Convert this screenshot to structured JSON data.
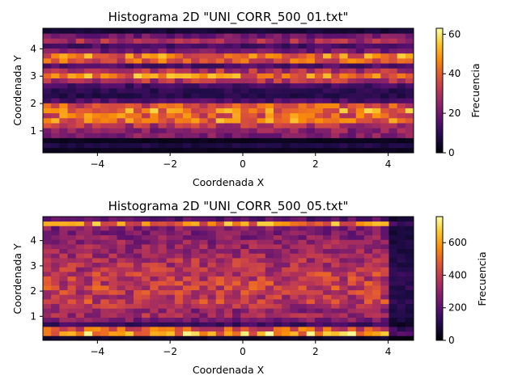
{
  "chart_data": [
    {
      "type": "heatmap",
      "title": "Histograma 2D \"UNI_CORR_500_01.txt\"",
      "xlabel": "Coordenada X",
      "ylabel": "Coordenada Y",
      "colorbar_label": "Frecuencia",
      "colormap": "inferno",
      "xlim": [
        -5.5,
        4.7
      ],
      "ylim": [
        0.2,
        4.75
      ],
      "vmin": 0,
      "vmax": 63,
      "xticks": [
        -4,
        -2,
        0,
        2,
        4
      ],
      "yticks": [
        1,
        2,
        3,
        4
      ],
      "colorbar_ticks": [
        0,
        20,
        40,
        60
      ],
      "rows_bottom_to_top": [
        {
          "y": 0.27,
          "base": 3
        },
        {
          "y": 0.45,
          "base": 8
        },
        {
          "y": 0.64,
          "base": 3
        },
        {
          "y": 0.82,
          "base": 22
        },
        {
          "y": 1.0,
          "base": 24
        },
        {
          "y": 1.18,
          "base": 30
        },
        {
          "y": 1.36,
          "base": 43
        },
        {
          "y": 1.55,
          "base": 40
        },
        {
          "y": 1.73,
          "base": 46
        },
        {
          "y": 1.91,
          "base": 37
        },
        {
          "y": 2.09,
          "base": 15
        },
        {
          "y": 2.28,
          "base": 9
        },
        {
          "y": 2.46,
          "base": 10
        },
        {
          "y": 2.64,
          "base": 13
        },
        {
          "y": 2.82,
          "base": 30
        },
        {
          "y": 3.01,
          "base": 45
        },
        {
          "y": 3.19,
          "base": 30
        },
        {
          "y": 3.37,
          "base": 15
        },
        {
          "y": 3.55,
          "base": 38
        },
        {
          "y": 3.74,
          "base": 44
        },
        {
          "y": 3.92,
          "base": 20
        },
        {
          "y": 4.1,
          "base": 14
        },
        {
          "y": 4.28,
          "base": 28
        },
        {
          "y": 4.47,
          "base": 20
        },
        {
          "y": 4.65,
          "base": 6
        }
      ]
    },
    {
      "type": "heatmap",
      "title": "Histograma 2D \"UNI_CORR_500_05.txt\"",
      "xlabel": "Coordenada X",
      "ylabel": "Coordenada Y",
      "colorbar_label": "Frecuencia",
      "colormap": "inferno",
      "xlim": [
        -5.5,
        4.7
      ],
      "ylim": [
        0.05,
        4.95
      ],
      "vmin": 0,
      "vmax": 760,
      "xticks": [
        -4,
        -2,
        0,
        2,
        4
      ],
      "yticks": [
        1,
        2,
        3,
        4
      ],
      "colorbar_ticks": [
        0,
        200,
        400,
        600
      ],
      "rows_bottom_to_top": [
        {
          "y": 0.12,
          "base": 60
        },
        {
          "y": 0.3,
          "base": 600
        },
        {
          "y": 0.48,
          "base": 470
        },
        {
          "y": 0.67,
          "base": 150
        },
        {
          "y": 0.85,
          "base": 260
        },
        {
          "y": 1.03,
          "base": 330
        },
        {
          "y": 1.21,
          "base": 300
        },
        {
          "y": 1.4,
          "base": 360
        },
        {
          "y": 1.58,
          "base": 400
        },
        {
          "y": 1.76,
          "base": 380
        },
        {
          "y": 1.94,
          "base": 390
        },
        {
          "y": 2.13,
          "base": 410
        },
        {
          "y": 2.31,
          "base": 400
        },
        {
          "y": 2.49,
          "base": 390
        },
        {
          "y": 2.67,
          "base": 400
        },
        {
          "y": 2.86,
          "base": 370
        },
        {
          "y": 3.04,
          "base": 360
        },
        {
          "y": 3.22,
          "base": 350
        },
        {
          "y": 3.4,
          "base": 330
        },
        {
          "y": 3.59,
          "base": 320
        },
        {
          "y": 3.77,
          "base": 310
        },
        {
          "y": 3.95,
          "base": 300
        },
        {
          "y": 4.13,
          "base": 280
        },
        {
          "y": 4.32,
          "base": 260
        },
        {
          "y": 4.5,
          "base": 270
        },
        {
          "y": 4.68,
          "base": 540
        },
        {
          "y": 4.86,
          "base": 200
        }
      ]
    }
  ]
}
